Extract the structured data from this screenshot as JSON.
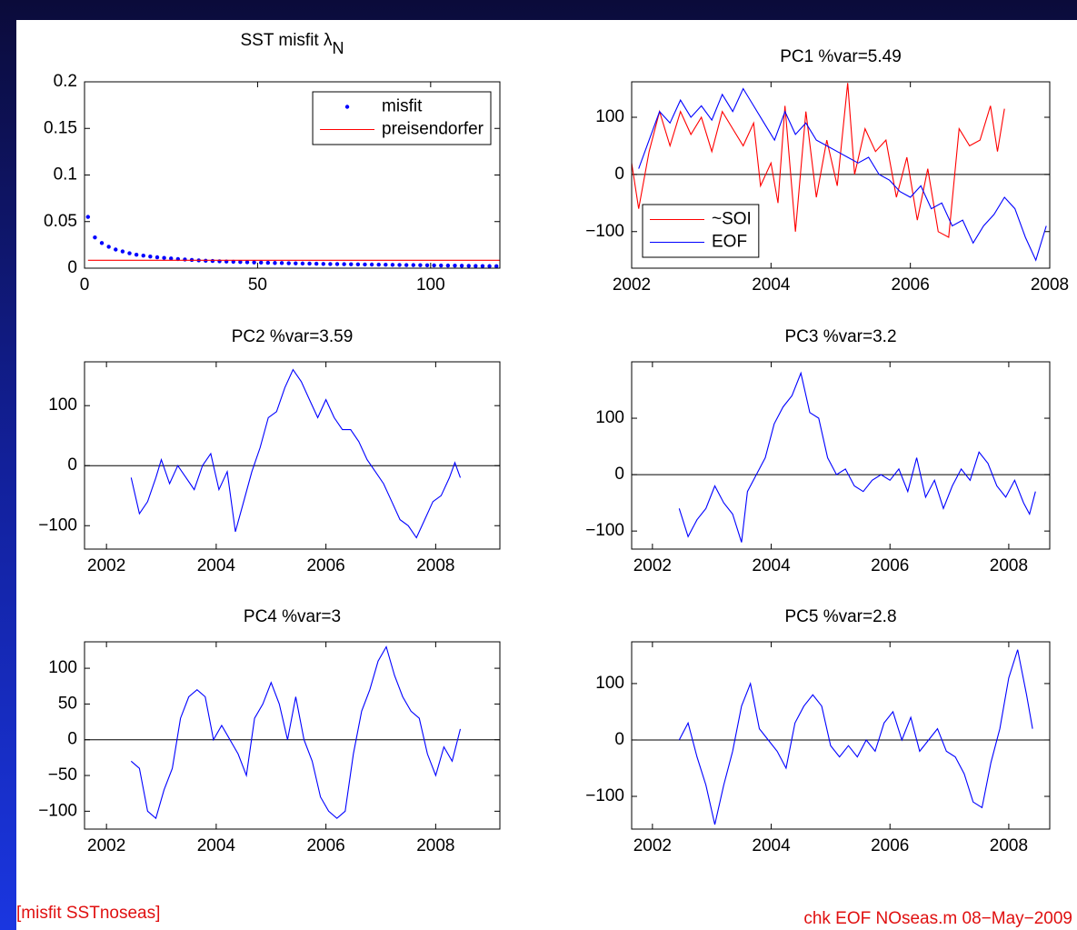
{
  "chart_data": [
    {
      "type": "scatter",
      "title": "SST misfit λ",
      "title_subscript": "N",
      "xlim": [
        0,
        120
      ],
      "xticks": [
        0,
        50,
        100
      ],
      "ylim": [
        0,
        0.2
      ],
      "yticks": [
        0,
        0.05,
        0.1,
        0.15,
        0.2
      ],
      "legend": "upper right",
      "series": [
        {
          "name": "misfit",
          "color": "#0000ff",
          "mode": "markers",
          "x": [
            1,
            3,
            5,
            7,
            9,
            11,
            13,
            15,
            17,
            19,
            21,
            23,
            25,
            27,
            29,
            31,
            33,
            35,
            37,
            39,
            41,
            43,
            45,
            47,
            49,
            51,
            53,
            55,
            57,
            59,
            61,
            63,
            65,
            67,
            69,
            71,
            73,
            75,
            77,
            79,
            81,
            83,
            85,
            87,
            89,
            91,
            93,
            95,
            97,
            99,
            101,
            103,
            105,
            107,
            109,
            111,
            113,
            115,
            117,
            119
          ],
          "values": [
            0.055,
            0.033,
            0.027,
            0.023,
            0.02,
            0.018,
            0.016,
            0.0145,
            0.0135,
            0.0125,
            0.0117,
            0.011,
            0.0104,
            0.0098,
            0.0093,
            0.0088,
            0.0084,
            0.008,
            0.0077,
            0.0074,
            0.0071,
            0.0069,
            0.0066,
            0.0064,
            0.0062,
            0.006,
            0.0058,
            0.0056,
            0.0055,
            0.0053,
            0.0052,
            0.005,
            0.0049,
            0.0048,
            0.0046,
            0.0045,
            0.0044,
            0.0043,
            0.0042,
            0.0041,
            0.004,
            0.0039,
            0.0038,
            0.0037,
            0.0036,
            0.0035,
            0.0034,
            0.0033,
            0.0032,
            0.0031,
            0.003,
            0.0029,
            0.0028,
            0.0027,
            0.0026,
            0.0025,
            0.0024,
            0.0023,
            0.0022,
            0.0021
          ]
        },
        {
          "name": "preisendorfer",
          "color": "#ff0000",
          "mode": "lines",
          "x": [
            1,
            120
          ],
          "values": [
            0.0085,
            0.0085
          ]
        }
      ]
    },
    {
      "type": "line",
      "title": "PC1  %var=5.49",
      "zero_line": true,
      "xlim": [
        2002,
        2008
      ],
      "xticks": [
        2002,
        2004,
        2006,
        2008
      ],
      "ylim": [
        -164,
        162
      ],
      "yticks": [
        {
          "value": -100,
          "label": "−100"
        },
        0,
        100
      ],
      "legend": "lower left",
      "series": [
        {
          "name": "~SOI",
          "color": "#ff0000",
          "mode": "lines",
          "x": [
            2002.0,
            2002.1,
            2002.25,
            2002.4,
            2002.55,
            2002.7,
            2002.85,
            2003.0,
            2003.15,
            2003.3,
            2003.45,
            2003.6,
            2003.75,
            2003.85,
            2004.0,
            2004.1,
            2004.2,
            2004.35,
            2004.5,
            2004.65,
            2004.8,
            2004.95,
            2005.1,
            2005.2,
            2005.35,
            2005.5,
            2005.65,
            2005.8,
            2005.95,
            2006.1,
            2006.25,
            2006.4,
            2006.55,
            2006.7,
            2006.85,
            2007.0,
            2007.15,
            2007.25,
            2007.35
          ],
          "values": [
            20,
            -60,
            40,
            110,
            50,
            110,
            70,
            100,
            40,
            110,
            80,
            50,
            90,
            -20,
            20,
            -50,
            120,
            -100,
            110,
            -40,
            60,
            -20,
            160,
            0,
            80,
            40,
            60,
            -40,
            30,
            -80,
            10,
            -100,
            -110,
            80,
            50,
            60,
            120,
            40,
            115
          ]
        },
        {
          "name": "EOF",
          "color": "#0000ff",
          "mode": "lines",
          "x": [
            2002.1,
            2002.25,
            2002.4,
            2002.55,
            2002.7,
            2002.85,
            2003.0,
            2003.15,
            2003.3,
            2003.45,
            2003.6,
            2003.75,
            2003.9,
            2004.05,
            2004.2,
            2004.35,
            2004.5,
            2004.65,
            2004.8,
            2004.95,
            2005.1,
            2005.25,
            2005.4,
            2005.55,
            2005.7,
            2005.85,
            2006.0,
            2006.15,
            2006.3,
            2006.45,
            2006.6,
            2006.75,
            2006.9,
            2007.05,
            2007.2,
            2007.35,
            2007.5,
            2007.65,
            2007.8,
            2007.95
          ],
          "values": [
            10,
            60,
            110,
            90,
            130,
            100,
            120,
            95,
            140,
            110,
            150,
            120,
            90,
            60,
            110,
            70,
            90,
            60,
            50,
            40,
            30,
            20,
            30,
            0,
            -10,
            -30,
            -40,
            -20,
            -60,
            -50,
            -90,
            -80,
            -120,
            -90,
            -70,
            -40,
            -60,
            -110,
            -150,
            -90
          ]
        }
      ]
    },
    {
      "type": "line",
      "title": "PC2  %var=3.59",
      "zero_line": true,
      "xlim": [
        2001.6,
        2009.17
      ],
      "xticks": [
        2002,
        2004,
        2006,
        2008
      ],
      "ylim": [
        -139,
        173
      ],
      "yticks": [
        {
          "value": -100,
          "label": "−100"
        },
        0,
        100
      ],
      "series": [
        {
          "color": "#0000ff",
          "mode": "lines",
          "x": [
            2002.45,
            2002.6,
            2002.75,
            2002.9,
            2003.0,
            2003.15,
            2003.3,
            2003.45,
            2003.6,
            2003.75,
            2003.9,
            2004.05,
            2004.2,
            2004.35,
            2004.5,
            2004.65,
            2004.8,
            2004.95,
            2005.1,
            2005.25,
            2005.4,
            2005.55,
            2005.7,
            2005.85,
            2006.0,
            2006.15,
            2006.3,
            2006.45,
            2006.6,
            2006.75,
            2006.9,
            2007.05,
            2007.2,
            2007.35,
            2007.5,
            2007.65,
            2007.8,
            2007.95,
            2008.1,
            2008.25,
            2008.35,
            2008.45
          ],
          "values": [
            -20,
            -80,
            -60,
            -20,
            10,
            -30,
            0,
            -20,
            -40,
            0,
            20,
            -40,
            -10,
            -110,
            -60,
            -10,
            30,
            80,
            90,
            130,
            160,
            140,
            110,
            80,
            110,
            80,
            60,
            60,
            40,
            10,
            -10,
            -30,
            -60,
            -90,
            -100,
            -120,
            -90,
            -60,
            -50,
            -20,
            5,
            -20
          ]
        }
      ]
    },
    {
      "type": "line",
      "title": "PC3  %var=3.2",
      "zero_line": true,
      "xlim": [
        2001.65,
        2008.69
      ],
      "xticks": [
        2002,
        2004,
        2006,
        2008
      ],
      "ylim": [
        -132,
        200
      ],
      "yticks": [
        {
          "value": -100,
          "label": "−100"
        },
        0,
        100
      ],
      "series": [
        {
          "color": "#0000ff",
          "mode": "lines",
          "x": [
            2002.45,
            2002.6,
            2002.75,
            2002.9,
            2003.05,
            2003.2,
            2003.35,
            2003.5,
            2003.6,
            2003.75,
            2003.9,
            2004.05,
            2004.2,
            2004.35,
            2004.5,
            2004.65,
            2004.8,
            2004.95,
            2005.1,
            2005.25,
            2005.4,
            2005.55,
            2005.7,
            2005.85,
            2006.0,
            2006.15,
            2006.3,
            2006.45,
            2006.6,
            2006.75,
            2006.9,
            2007.05,
            2007.2,
            2007.35,
            2007.5,
            2007.65,
            2007.8,
            2007.95,
            2008.1,
            2008.25,
            2008.35,
            2008.45
          ],
          "values": [
            -60,
            -110,
            -80,
            -60,
            -20,
            -50,
            -70,
            -120,
            -30,
            0,
            30,
            90,
            120,
            140,
            180,
            110,
            100,
            30,
            0,
            10,
            -20,
            -30,
            -10,
            0,
            -10,
            10,
            -30,
            30,
            -40,
            -10,
            -60,
            -20,
            10,
            -10,
            40,
            20,
            -20,
            -40,
            -10,
            -50,
            -70,
            -30
          ]
        }
      ]
    },
    {
      "type": "line",
      "title": "PC4  %var=3",
      "zero_line": true,
      "xlim": [
        2001.6,
        2009.17
      ],
      "xticks": [
        2002,
        2004,
        2006,
        2008
      ],
      "ylim": [
        -125,
        137
      ],
      "yticks": [
        {
          "value": -100,
          "label": "−100"
        },
        {
          "value": -50,
          "label": "−50"
        },
        0,
        50,
        100
      ],
      "series": [
        {
          "color": "#0000ff",
          "mode": "lines",
          "x": [
            2002.45,
            2002.6,
            2002.75,
            2002.9,
            2003.05,
            2003.2,
            2003.35,
            2003.5,
            2003.65,
            2003.8,
            2003.95,
            2004.1,
            2004.25,
            2004.4,
            2004.55,
            2004.7,
            2004.85,
            2005.0,
            2005.15,
            2005.3,
            2005.45,
            2005.6,
            2005.75,
            2005.9,
            2006.05,
            2006.2,
            2006.35,
            2006.5,
            2006.65,
            2006.8,
            2006.95,
            2007.1,
            2007.25,
            2007.4,
            2007.55,
            2007.7,
            2007.85,
            2008.0,
            2008.15,
            2008.3,
            2008.45
          ],
          "values": [
            -30,
            -40,
            -100,
            -110,
            -70,
            -40,
            30,
            60,
            70,
            60,
            0,
            20,
            0,
            -20,
            -50,
            30,
            50,
            80,
            50,
            0,
            60,
            0,
            -30,
            -80,
            -100,
            -110,
            -100,
            -20,
            40,
            70,
            110,
            130,
            90,
            60,
            40,
            30,
            -20,
            -50,
            -10,
            -30,
            15
          ]
        }
      ]
    },
    {
      "type": "line",
      "title": "PC5  %var=2.8",
      "zero_line": true,
      "xlim": [
        2001.65,
        2008.69
      ],
      "xticks": [
        2002,
        2004,
        2006,
        2008
      ],
      "ylim": [
        -158,
        174
      ],
      "yticks": [
        {
          "value": -100,
          "label": "−100"
        },
        0,
        100
      ],
      "series": [
        {
          "color": "#0000ff",
          "mode": "lines",
          "x": [
            2002.45,
            2002.6,
            2002.75,
            2002.9,
            2003.05,
            2003.2,
            2003.35,
            2003.5,
            2003.65,
            2003.8,
            2003.95,
            2004.1,
            2004.25,
            2004.4,
            2004.55,
            2004.7,
            2004.85,
            2005.0,
            2005.15,
            2005.3,
            2005.45,
            2005.6,
            2005.75,
            2005.9,
            2006.05,
            2006.2,
            2006.35,
            2006.5,
            2006.65,
            2006.8,
            2006.95,
            2007.1,
            2007.25,
            2007.4,
            2007.55,
            2007.7,
            2007.85,
            2008.0,
            2008.15,
            2008.3,
            2008.4
          ],
          "values": [
            0,
            30,
            -30,
            -80,
            -150,
            -80,
            -20,
            60,
            100,
            20,
            0,
            -20,
            -50,
            30,
            60,
            80,
            60,
            -10,
            -30,
            -10,
            -30,
            0,
            -20,
            30,
            50,
            0,
            40,
            -20,
            0,
            20,
            -20,
            -30,
            -60,
            -110,
            -120,
            -40,
            20,
            110,
            160,
            80,
            20
          ]
        }
      ]
    }
  ],
  "footer": {
    "left": "[misfit SSTnoseas]",
    "right": "chk  EOF  NOseas.m   08−May−2009"
  }
}
